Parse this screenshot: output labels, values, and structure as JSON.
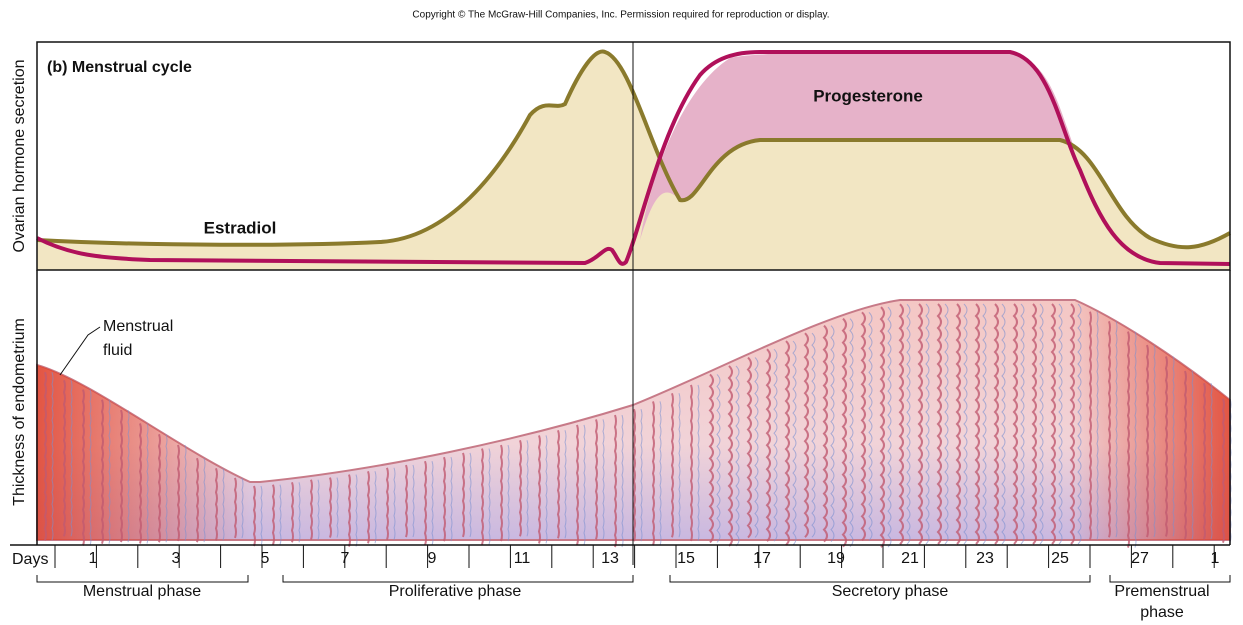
{
  "copyright": "Copyright © The McGraw-Hill Companies, Inc. Permission required for reproduction or display.",
  "panel_title": "(b) Menstrual cycle",
  "top_axis_label": "Ovarian hormone secretion",
  "bottom_axis_label": "Thickness of endometrium",
  "hormones": {
    "estradiol": "Estradiol",
    "progesterone": "Progesterone"
  },
  "annotation": [
    "Menstrual",
    "fluid"
  ],
  "days_label": "Days",
  "days": [
    "1",
    "3",
    "5",
    "7",
    "9",
    "11",
    "13",
    "15",
    "17",
    "19",
    "21",
    "23",
    "25",
    "27",
    "1"
  ],
  "phases": {
    "menstrual": [
      "Menstrual phase"
    ],
    "proliferative": [
      "Proliferative phase"
    ],
    "secretory": [
      "Secretory phase"
    ],
    "premenstrual": [
      "Premenstrual",
      "phase"
    ]
  }
}
